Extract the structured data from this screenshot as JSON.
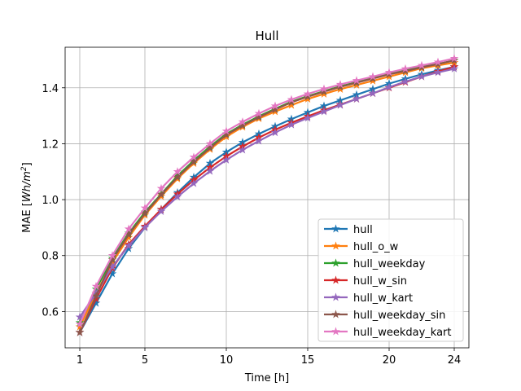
{
  "chart_data": {
    "type": "line",
    "title": "Hull",
    "xlabel": "Time [h]",
    "ylabel_main": "MAE [",
    "ylabel_unit": "Wh/m",
    "ylabel_exp": "2",
    "ylabel_close": "]",
    "xlim": [
      0.1,
      24.9
    ],
    "ylim": [
      0.47,
      1.545
    ],
    "xticks": [
      1,
      5,
      10,
      15,
      20,
      24
    ],
    "yticks": [
      0.6,
      0.8,
      1.0,
      1.2,
      1.4
    ],
    "ytick_labels": [
      "0.6",
      "0.8",
      "1.0",
      "1.2",
      "1.4"
    ],
    "grid": true,
    "legend_position": "lower-right",
    "x": [
      1,
      2,
      3,
      4,
      5,
      6,
      7,
      8,
      9,
      10,
      11,
      12,
      13,
      14,
      15,
      16,
      17,
      18,
      19,
      20,
      21,
      22,
      23,
      24
    ],
    "series": [
      {
        "name": "hull",
        "color": "#1f77b4",
        "values": [
          0.525,
          0.63,
          0.735,
          0.825,
          0.9,
          0.965,
          1.025,
          1.08,
          1.13,
          1.17,
          1.205,
          1.235,
          1.262,
          1.288,
          1.312,
          1.335,
          1.355,
          1.375,
          1.395,
          1.415,
          1.432,
          1.448,
          1.462,
          1.475
        ]
      },
      {
        "name": "hull_o_w",
        "color": "#ff7f0e",
        "values": [
          0.545,
          0.665,
          0.775,
          0.865,
          0.945,
          1.012,
          1.075,
          1.13,
          1.18,
          1.225,
          1.26,
          1.29,
          1.315,
          1.338,
          1.36,
          1.378,
          1.395,
          1.41,
          1.425,
          1.44,
          1.455,
          1.47,
          1.48,
          1.49
        ]
      },
      {
        "name": "hull_weekday",
        "color": "#2ca02c",
        "values": [
          0.56,
          0.68,
          0.79,
          0.88,
          0.955,
          1.02,
          1.085,
          1.14,
          1.19,
          1.235,
          1.268,
          1.298,
          1.325,
          1.35,
          1.37,
          1.388,
          1.405,
          1.42,
          1.435,
          1.45,
          1.462,
          1.475,
          1.485,
          1.498
        ]
      },
      {
        "name": "hull_w_sin",
        "color": "#d62728",
        "values": [
          0.525,
          0.645,
          0.755,
          0.84,
          0.905,
          0.965,
          1.02,
          1.07,
          1.115,
          1.155,
          1.19,
          1.222,
          1.25,
          1.275,
          1.298,
          1.32,
          1.34,
          1.36,
          1.38,
          1.4,
          1.42,
          1.44,
          1.458,
          1.475
        ]
      },
      {
        "name": "hull_w_kart",
        "color": "#9467bd",
        "values": [
          0.58,
          0.665,
          0.76,
          0.835,
          0.9,
          0.958,
          1.01,
          1.058,
          1.102,
          1.142,
          1.178,
          1.21,
          1.24,
          1.268,
          1.292,
          1.315,
          1.338,
          1.36,
          1.38,
          1.402,
          1.422,
          1.44,
          1.455,
          1.468
        ]
      },
      {
        "name": "hull_weekday_sin",
        "color": "#8c564b",
        "values": [
          0.525,
          0.655,
          0.785,
          0.875,
          0.95,
          1.018,
          1.08,
          1.135,
          1.185,
          1.232,
          1.265,
          1.295,
          1.322,
          1.348,
          1.368,
          1.386,
          1.403,
          1.418,
          1.433,
          1.448,
          1.46,
          1.473,
          1.485,
          1.498
        ]
      },
      {
        "name": "hull_weekday_kart",
        "color": "#e377c2",
        "values": [
          0.555,
          0.69,
          0.8,
          0.895,
          0.97,
          1.04,
          1.1,
          1.152,
          1.2,
          1.245,
          1.278,
          1.308,
          1.335,
          1.358,
          1.378,
          1.396,
          1.412,
          1.426,
          1.44,
          1.455,
          1.468,
          1.48,
          1.492,
          1.505
        ]
      }
    ]
  }
}
